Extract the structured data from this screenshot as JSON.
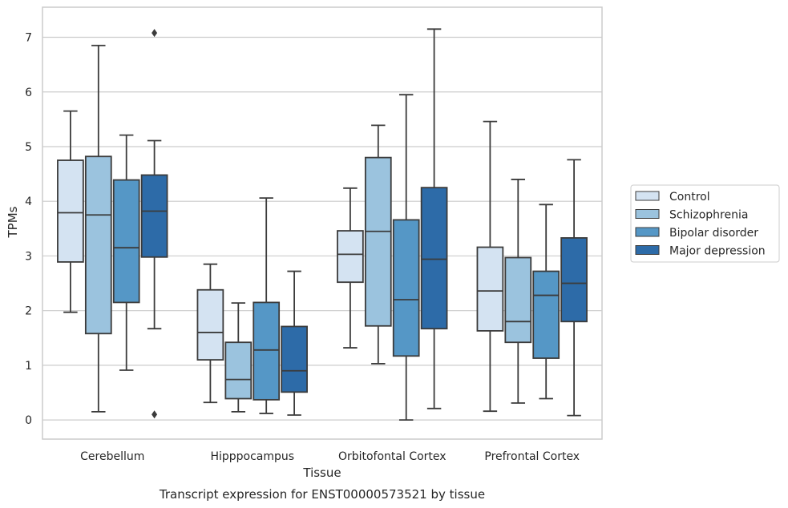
{
  "caption": "Transcript expression for ENST00000573521 by tissue",
  "chart_data": {
    "type": "box",
    "xlabel": "Tissue",
    "ylabel": "TPMs",
    "ylim": [
      -0.35,
      7.55
    ],
    "yticks": [
      0,
      1,
      2,
      3,
      4,
      5,
      6,
      7
    ],
    "grid": true,
    "legend_position": "right",
    "categories": [
      "Cerebellum",
      "Hipppocampus",
      "Orbitofontal Cortex",
      "Prefrontal Cortex"
    ],
    "series": [
      {
        "name": "Control",
        "color": "#d4e3f2",
        "boxes": [
          {
            "whisker_low": 1.97,
            "q1": 2.89,
            "median": 3.79,
            "q3": 4.75,
            "whisker_high": 5.65,
            "outliers": []
          },
          {
            "whisker_low": 0.32,
            "q1": 1.1,
            "median": 1.6,
            "q3": 2.38,
            "whisker_high": 2.85,
            "outliers": []
          },
          {
            "whisker_low": 1.32,
            "q1": 2.52,
            "median": 3.03,
            "q3": 3.46,
            "whisker_high": 4.24,
            "outliers": []
          },
          {
            "whisker_low": 0.16,
            "q1": 1.63,
            "median": 2.36,
            "q3": 3.16,
            "whisker_high": 5.46,
            "outliers": []
          }
        ]
      },
      {
        "name": "Schizophrenia",
        "color": "#9bc3de",
        "boxes": [
          {
            "whisker_low": 0.15,
            "q1": 1.58,
            "median": 3.75,
            "q3": 4.82,
            "whisker_high": 6.85,
            "outliers": []
          },
          {
            "whisker_low": 0.15,
            "q1": 0.39,
            "median": 0.74,
            "q3": 1.42,
            "whisker_high": 2.14,
            "outliers": []
          },
          {
            "whisker_low": 1.03,
            "q1": 1.72,
            "median": 3.45,
            "q3": 4.8,
            "whisker_high": 5.39,
            "outliers": []
          },
          {
            "whisker_low": 0.31,
            "q1": 1.42,
            "median": 1.8,
            "q3": 2.97,
            "whisker_high": 4.4,
            "outliers": []
          }
        ]
      },
      {
        "name": "Bipolar disorder",
        "color": "#5597c6",
        "boxes": [
          {
            "whisker_low": 0.91,
            "q1": 2.15,
            "median": 3.15,
            "q3": 4.39,
            "whisker_high": 5.21,
            "outliers": []
          },
          {
            "whisker_low": 0.12,
            "q1": 0.37,
            "median": 1.28,
            "q3": 2.15,
            "whisker_high": 4.06,
            "outliers": []
          },
          {
            "whisker_low": 0.0,
            "q1": 1.17,
            "median": 2.2,
            "q3": 3.66,
            "whisker_high": 5.95,
            "outliers": []
          },
          {
            "whisker_low": 0.39,
            "q1": 1.13,
            "median": 2.28,
            "q3": 2.72,
            "whisker_high": 3.94,
            "outliers": []
          }
        ]
      },
      {
        "name": "Major depression",
        "color": "#2d6ba8",
        "boxes": [
          {
            "whisker_low": 1.67,
            "q1": 2.98,
            "median": 3.82,
            "q3": 4.48,
            "whisker_high": 5.11,
            "outliers": [
              7.08,
              0.1
            ]
          },
          {
            "whisker_low": 0.09,
            "q1": 0.51,
            "median": 0.9,
            "q3": 1.71,
            "whisker_high": 2.72,
            "outliers": []
          },
          {
            "whisker_low": 0.21,
            "q1": 1.67,
            "median": 2.94,
            "q3": 4.25,
            "whisker_high": 7.15,
            "outliers": []
          },
          {
            "whisker_low": 0.08,
            "q1": 1.8,
            "median": 2.5,
            "q3": 3.33,
            "whisker_high": 4.76,
            "outliers": []
          }
        ]
      }
    ]
  }
}
